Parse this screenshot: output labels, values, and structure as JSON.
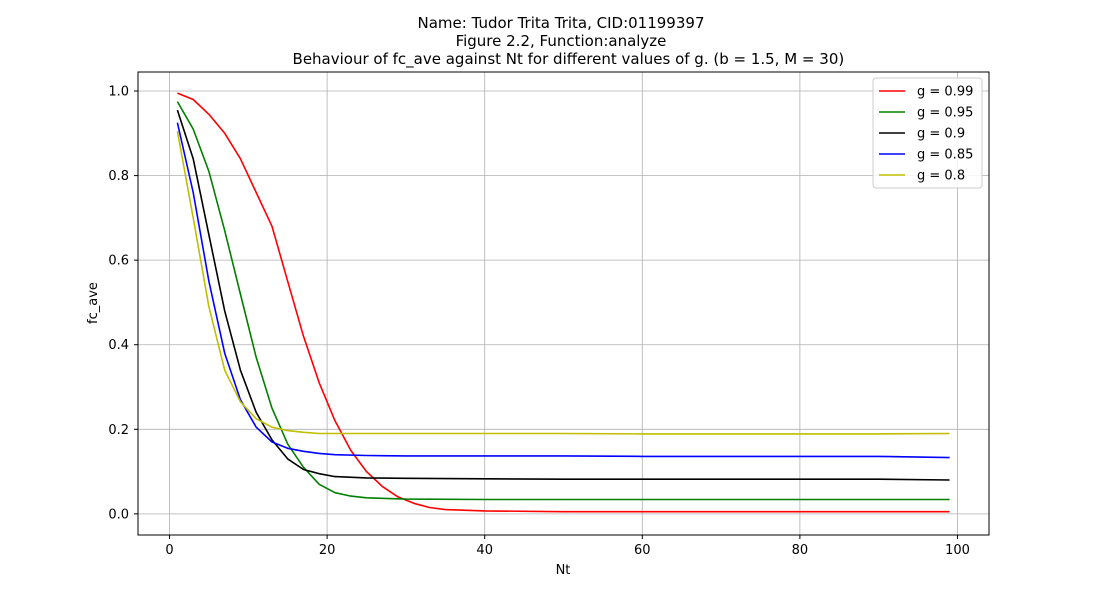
{
  "chart_data": {
    "type": "line",
    "title_lines": [
      "Name: Tudor Trita Trita, CID:01199397",
      "Figure 2.2, Function:analyze",
      " Behaviour of fc_ave against Nt for different values of g. (b = 1.5, M = 30)"
    ],
    "xlabel": "Nt",
    "ylabel": "fc_ave",
    "xlim": [
      -4,
      104
    ],
    "ylim": [
      -0.05,
      1.045
    ],
    "xticks": [
      0,
      20,
      40,
      60,
      80,
      100
    ],
    "xtick_labels": [
      "0",
      "20",
      "40",
      "60",
      "80",
      "100"
    ],
    "yticks": [
      0.0,
      0.2,
      0.4,
      0.6,
      0.8,
      1.0
    ],
    "ytick_labels": [
      "0.0",
      "0.2",
      "0.4",
      "0.6",
      "0.8",
      "1.0"
    ],
    "grid": true,
    "legend_position": "top-right",
    "x_range": [
      1,
      99
    ],
    "series": [
      {
        "name": "g = 0.99",
        "color": "#ff0000",
        "points": [
          [
            1,
            0.995
          ],
          [
            3,
            0.98
          ],
          [
            5,
            0.945
          ],
          [
            7,
            0.9
          ],
          [
            9,
            0.84
          ],
          [
            11,
            0.76
          ],
          [
            13,
            0.68
          ],
          [
            15,
            0.55
          ],
          [
            17,
            0.42
          ],
          [
            19,
            0.31
          ],
          [
            21,
            0.22
          ],
          [
            23,
            0.15
          ],
          [
            25,
            0.1
          ],
          [
            27,
            0.065
          ],
          [
            29,
            0.04
          ],
          [
            31,
            0.025
          ],
          [
            33,
            0.015
          ],
          [
            35,
            0.01
          ],
          [
            40,
            0.007
          ],
          [
            50,
            0.005
          ],
          [
            60,
            0.005
          ],
          [
            70,
            0.005
          ],
          [
            80,
            0.005
          ],
          [
            90,
            0.005
          ],
          [
            99,
            0.005
          ]
        ]
      },
      {
        "name": "g = 0.95",
        "color": "#008000",
        "points": [
          [
            1,
            0.975
          ],
          [
            3,
            0.91
          ],
          [
            5,
            0.81
          ],
          [
            7,
            0.67
          ],
          [
            9,
            0.52
          ],
          [
            11,
            0.37
          ],
          [
            13,
            0.25
          ],
          [
            15,
            0.165
          ],
          [
            17,
            0.11
          ],
          [
            19,
            0.07
          ],
          [
            21,
            0.05
          ],
          [
            23,
            0.042
          ],
          [
            25,
            0.038
          ],
          [
            30,
            0.035
          ],
          [
            40,
            0.034
          ],
          [
            50,
            0.034
          ],
          [
            60,
            0.034
          ],
          [
            70,
            0.034
          ],
          [
            80,
            0.034
          ],
          [
            90,
            0.034
          ],
          [
            99,
            0.034
          ]
        ]
      },
      {
        "name": "g = 0.9",
        "color": "#000000",
        "points": [
          [
            1,
            0.955
          ],
          [
            3,
            0.84
          ],
          [
            5,
            0.66
          ],
          [
            7,
            0.48
          ],
          [
            9,
            0.34
          ],
          [
            11,
            0.24
          ],
          [
            13,
            0.175
          ],
          [
            15,
            0.13
          ],
          [
            17,
            0.105
          ],
          [
            19,
            0.095
          ],
          [
            21,
            0.088
          ],
          [
            25,
            0.085
          ],
          [
            30,
            0.084
          ],
          [
            40,
            0.083
          ],
          [
            50,
            0.082
          ],
          [
            60,
            0.082
          ],
          [
            70,
            0.082
          ],
          [
            80,
            0.082
          ],
          [
            90,
            0.082
          ],
          [
            99,
            0.08
          ]
        ]
      },
      {
        "name": "g = 0.85",
        "color": "#0000ff",
        "points": [
          [
            1,
            0.925
          ],
          [
            3,
            0.76
          ],
          [
            5,
            0.55
          ],
          [
            7,
            0.38
          ],
          [
            9,
            0.27
          ],
          [
            11,
            0.205
          ],
          [
            13,
            0.17
          ],
          [
            15,
            0.155
          ],
          [
            17,
            0.148
          ],
          [
            19,
            0.143
          ],
          [
            21,
            0.14
          ],
          [
            25,
            0.138
          ],
          [
            30,
            0.137
          ],
          [
            40,
            0.137
          ],
          [
            50,
            0.137
          ],
          [
            60,
            0.136
          ],
          [
            70,
            0.136
          ],
          [
            80,
            0.136
          ],
          [
            90,
            0.136
          ],
          [
            99,
            0.133
          ]
        ]
      },
      {
        "name": "g = 0.8",
        "color": "#bfbf00",
        "points": [
          [
            1,
            0.905
          ],
          [
            3,
            0.7
          ],
          [
            5,
            0.49
          ],
          [
            7,
            0.34
          ],
          [
            9,
            0.265
          ],
          [
            11,
            0.225
          ],
          [
            13,
            0.205
          ],
          [
            15,
            0.197
          ],
          [
            17,
            0.193
          ],
          [
            19,
            0.19
          ],
          [
            21,
            0.19
          ],
          [
            25,
            0.19
          ],
          [
            30,
            0.19
          ],
          [
            40,
            0.19
          ],
          [
            50,
            0.19
          ],
          [
            60,
            0.189
          ],
          [
            70,
            0.189
          ],
          [
            80,
            0.189
          ],
          [
            90,
            0.189
          ],
          [
            99,
            0.19
          ]
        ]
      }
    ]
  }
}
